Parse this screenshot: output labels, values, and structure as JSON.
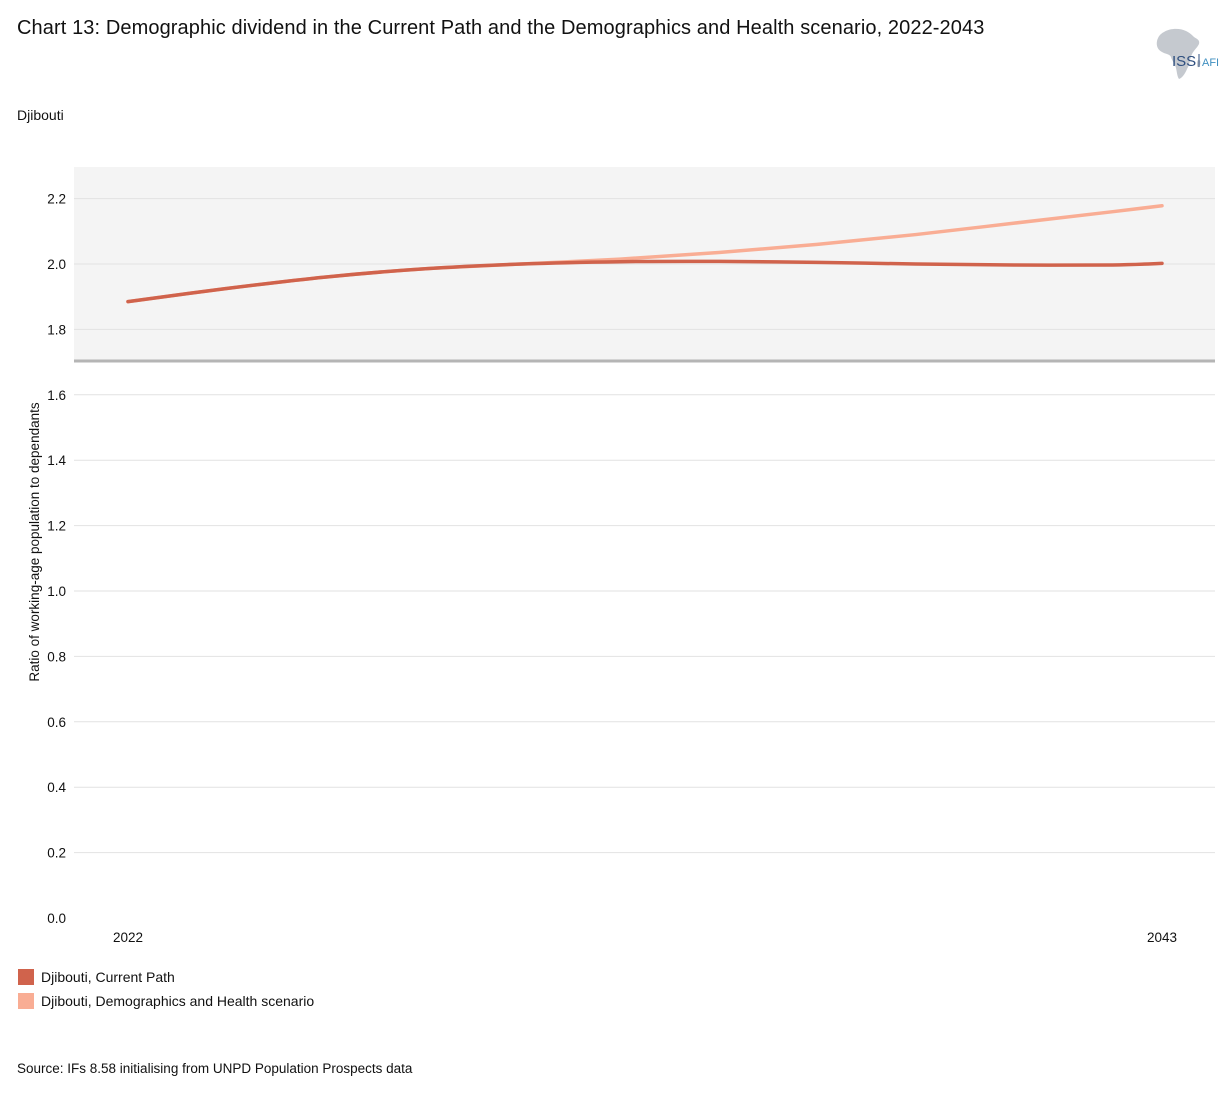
{
  "header": {
    "title": "Chart 13: Demographic dividend in the Current Path and the Demographics and Health scenario, 2022-2043",
    "subtitle": "Djibouti",
    "logo_text": "ISS",
    "logo_text_partial": "AFI"
  },
  "footer": {
    "source": "Source: IFs 8.58 initialising from UNPD Population Prospects data"
  },
  "colors": {
    "current_path": "#d0634c",
    "scenario": "#f9ad94",
    "zoom_band_bg": "#f4f4f4",
    "grid": "#e2e2e2",
    "separator": "#b5b5b5",
    "logo_map": "#c5c9cf",
    "logo_text": "#2f4f7f"
  },
  "chart_data": {
    "type": "line",
    "title": "",
    "xlabel": "",
    "ylabel": "Ratio of working-age population to dependants",
    "x_tick_labels": [
      "2022",
      "2043"
    ],
    "x": [
      2022,
      2024,
      2026,
      2028,
      2030,
      2032,
      2034,
      2036,
      2038,
      2040,
      2042,
      2043
    ],
    "ylim": [
      0,
      1.7
    ],
    "y_ticks": [
      "0.0",
      "0.2",
      "0.4",
      "0.6",
      "0.8",
      "1.0",
      "1.2",
      "1.4",
      "1.6"
    ],
    "zoom_band": {
      "ylim": [
        1.7,
        2.3
      ],
      "y_ticks": [
        "1.8",
        "2.0",
        "2.2"
      ]
    },
    "grid": true,
    "legend_position": "bottom-left",
    "series": [
      {
        "name": "Djibouti, Current Path",
        "color_key": "current_path",
        "values": [
          1.885,
          1.925,
          1.96,
          1.985,
          2.0,
          2.007,
          2.008,
          2.005,
          2.0,
          1.997,
          1.997,
          2.002
        ]
      },
      {
        "name": "Djibouti, Demographics and Health scenario",
        "color_key": "scenario",
        "values": [
          1.885,
          1.925,
          1.96,
          1.985,
          2.0,
          2.015,
          2.035,
          2.06,
          2.09,
          2.125,
          2.16,
          2.178
        ]
      }
    ]
  }
}
